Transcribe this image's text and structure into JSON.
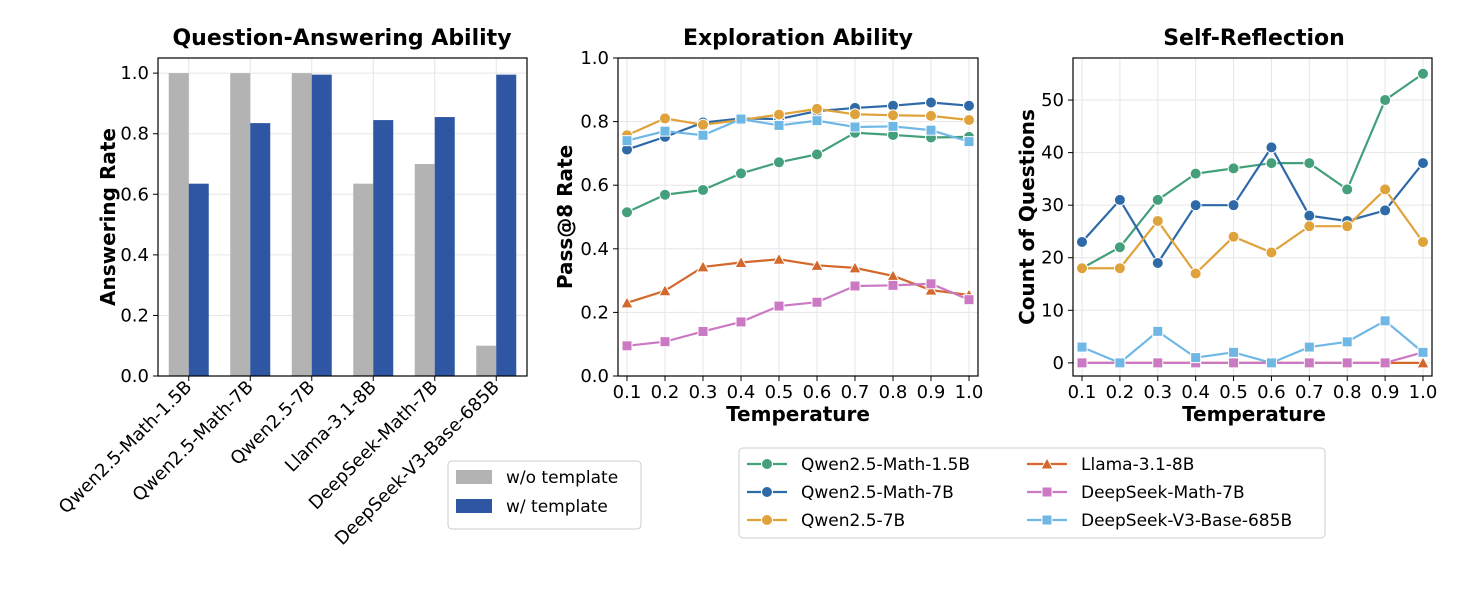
{
  "chart_data": [
    {
      "type": "bar",
      "title": "Question-Answering Ability",
      "xlabel": "",
      "ylabel": "Answering Rate",
      "ylim": [
        0,
        1.05
      ],
      "yticks": [
        "0.0",
        "0.2",
        "0.4",
        "0.6",
        "0.8",
        "1.0"
      ],
      "grid": true,
      "legend_position": "outside-bottom-right",
      "categories": [
        "Qwen2.5-Math-1.5B",
        "Qwen2.5-Math-7B",
        "Qwen2.5-7B",
        "Llama-3.1-8B",
        "DeepSeek-Math-7B",
        "DeepSeek-V3-Base-685B"
      ],
      "series": [
        {
          "name": "w/o template",
          "color": "#b3b3b3",
          "values": [
            1.0,
            1.0,
            1.0,
            0.635,
            0.7,
            0.1
          ]
        },
        {
          "name": "w/ template",
          "color": "#2f56a3",
          "values": [
            0.635,
            0.835,
            0.995,
            0.845,
            0.855,
            0.995
          ]
        }
      ]
    },
    {
      "type": "line",
      "title": "Exploration Ability",
      "xlabel": "Temperature",
      "ylabel": "Pass@8 Rate",
      "ylim": [
        0,
        1.0
      ],
      "yticks": [
        "0.0",
        "0.2",
        "0.4",
        "0.6",
        "0.8",
        "1.0"
      ],
      "grid": true,
      "x": [
        "0.1",
        "0.2",
        "0.3",
        "0.4",
        "0.5",
        "0.6",
        "0.7",
        "0.8",
        "0.9",
        "1.0"
      ],
      "series": [
        {
          "name": "Qwen2.5-Math-1.5B",
          "color": "#44a07a",
          "marker": "circle",
          "values": [
            0.515,
            0.57,
            0.585,
            0.637,
            0.672,
            0.697,
            0.765,
            0.758,
            0.75,
            0.752
          ]
        },
        {
          "name": "Qwen2.5-Math-7B",
          "color": "#2e6aa7",
          "marker": "circle",
          "values": [
            0.712,
            0.752,
            0.797,
            0.81,
            0.808,
            0.833,
            0.843,
            0.85,
            0.86,
            0.85
          ]
        },
        {
          "name": "Qwen2.5-7B",
          "color": "#e0a23a",
          "marker": "circle",
          "values": [
            0.757,
            0.81,
            0.79,
            0.805,
            0.822,
            0.84,
            0.823,
            0.82,
            0.818,
            0.805
          ]
        },
        {
          "name": "Llama-3.1-8B",
          "color": "#d2682b",
          "marker": "triangle",
          "values": [
            0.23,
            0.268,
            0.343,
            0.357,
            0.367,
            0.348,
            0.34,
            0.315,
            0.27,
            0.255
          ]
        },
        {
          "name": "DeepSeek-Math-7B",
          "color": "#cc79c4",
          "marker": "square",
          "values": [
            0.095,
            0.108,
            0.14,
            0.17,
            0.22,
            0.232,
            0.283,
            0.285,
            0.29,
            0.24
          ]
        },
        {
          "name": "DeepSeek-V3-Base-685B",
          "color": "#6fb8e6",
          "marker": "square",
          "values": [
            0.74,
            0.77,
            0.757,
            0.808,
            0.788,
            0.803,
            0.783,
            0.785,
            0.773,
            0.737
          ]
        }
      ]
    },
    {
      "type": "line",
      "title": "Self-Reflection",
      "xlabel": "Temperature",
      "ylabel": "Count of Questions",
      "ylim": [
        -2.5,
        58
      ],
      "yticks": [
        "0",
        "10",
        "20",
        "30",
        "40",
        "50"
      ],
      "grid": true,
      "legend_position": "outside-bottom",
      "x": [
        "0.1",
        "0.2",
        "0.3",
        "0.4",
        "0.5",
        "0.6",
        "0.7",
        "0.8",
        "0.9",
        "1.0"
      ],
      "series": [
        {
          "name": "Qwen2.5-Math-1.5B",
          "color": "#44a07a",
          "marker": "circle",
          "values": [
            18,
            22,
            31,
            36,
            37,
            38,
            38,
            33,
            50,
            55
          ]
        },
        {
          "name": "Qwen2.5-Math-7B",
          "color": "#2e6aa7",
          "marker": "circle",
          "values": [
            23,
            31,
            19,
            30,
            30,
            41,
            28,
            27,
            29,
            38
          ]
        },
        {
          "name": "Qwen2.5-7B",
          "color": "#e0a23a",
          "marker": "circle",
          "values": [
            18,
            18,
            27,
            17,
            24,
            21,
            26,
            26,
            33,
            23
          ]
        },
        {
          "name": "Llama-3.1-8B",
          "color": "#d2682b",
          "marker": "triangle",
          "values": [
            0,
            0,
            0,
            0,
            0,
            0,
            0,
            0,
            0,
            0
          ]
        },
        {
          "name": "DeepSeek-Math-7B",
          "color": "#cc79c4",
          "marker": "square",
          "values": [
            0,
            0,
            0,
            0,
            0,
            0,
            0,
            0,
            0,
            2
          ]
        },
        {
          "name": "DeepSeek-V3-Base-685B",
          "color": "#6fb8e6",
          "marker": "square",
          "values": [
            3,
            0,
            6,
            1,
            2,
            0,
            3,
            4,
            8,
            2
          ]
        }
      ]
    }
  ]
}
